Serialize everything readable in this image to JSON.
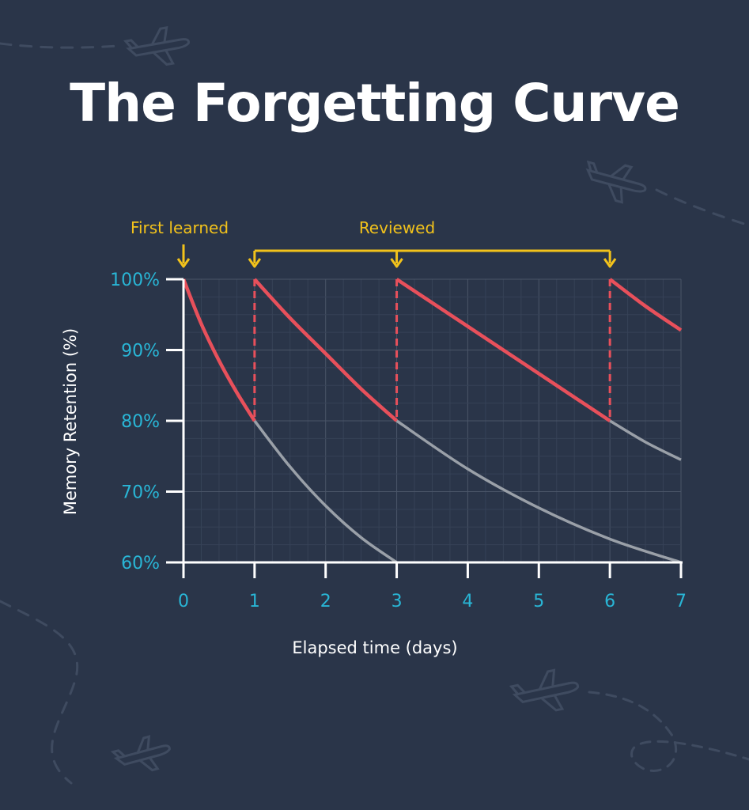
{
  "title": "The Forgetting Curve",
  "colors": {
    "background": "#2a3549",
    "review_curve": "#e8505b",
    "decay_curve": "#9aa0a8",
    "annotation": "#f2c21b",
    "tick_labels": "#29b6d6",
    "axis": "#ffffff"
  },
  "decorations": [
    "airplane-icon",
    "airplane-icon",
    "airplane-icon",
    "airplane-icon",
    "dashed-flight-path"
  ],
  "chart_data": {
    "type": "line",
    "xlabel": "Elapsed time (days)",
    "ylabel": "Memory Retention (%)",
    "xlim": [
      0,
      7
    ],
    "ylim": [
      60,
      100
    ],
    "x_ticks": [
      "0",
      "1",
      "2",
      "3",
      "4",
      "5",
      "6",
      "7"
    ],
    "y_ticks": [
      "60%",
      "70%",
      "80%",
      "90%",
      "100%"
    ],
    "grid": true,
    "annotations": {
      "first_learned": {
        "label": "First learned",
        "day": 0
      },
      "reviewed": {
        "label": "Reviewed",
        "days": [
          1,
          3,
          6
        ]
      }
    },
    "series": [
      {
        "role": "retention with reviews",
        "segments": [
          {
            "x": [
              0,
              0.25,
              0.5,
              0.75,
              1
            ],
            "y": [
              100,
              93.7,
              88.5,
              84.0,
              80
            ]
          },
          {
            "x": [
              1,
              1.5,
              2,
              2.5,
              3
            ],
            "y": [
              100,
              94.5,
              89.5,
              84.5,
              80
            ]
          },
          {
            "x": [
              3,
              3.75,
              4.5,
              5.25,
              6
            ],
            "y": [
              100,
              95.0,
              90.0,
              85.0,
              80
            ]
          },
          {
            "x": [
              6,
              6.5,
              7
            ],
            "y": [
              100,
              96.2,
              92.8
            ]
          }
        ]
      },
      {
        "role": "decay without review",
        "segments": [
          {
            "x": [
              1,
              1.5,
              2,
              2.5,
              3
            ],
            "y": [
              80,
              73.5,
              68.0,
              63.5,
              60
            ]
          },
          {
            "x": [
              3,
              4,
              5,
              6,
              7
            ],
            "y": [
              80,
              73.2,
              67.7,
              63.3,
              60
            ]
          },
          {
            "x": [
              6,
              6.5,
              7
            ],
            "y": [
              80,
              77.0,
              74.5
            ]
          }
        ]
      }
    ]
  }
}
